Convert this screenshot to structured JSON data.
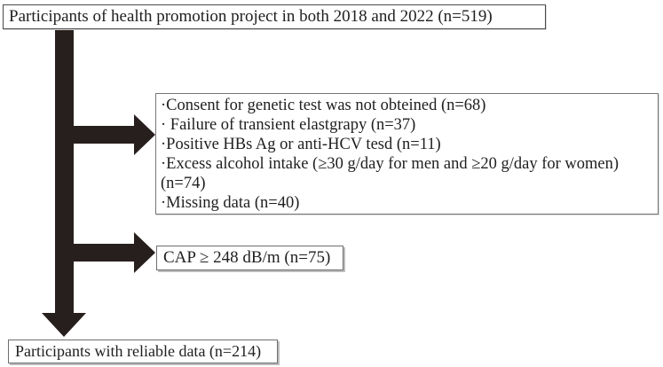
{
  "figure": {
    "type": "participant-flow-diagram",
    "colors": {
      "arrow": "#271f1d",
      "text": "#1f1f1f",
      "box_border": "#6e6e6e",
      "background": "#ffffff"
    },
    "boxes": {
      "source": {
        "label": "Participants of health promotion project in both 2018 and 2022 (n=519)"
      },
      "exclusions": {
        "lines": [
          "·Consent for genetic test was not obteined (n=68)",
          "· Failure of transient elastgrapy  (n=37)",
          "·Positive HBs Ag or anti-HCV tesd (n=11)",
          "·Excess alcohol intake (≥30 g/day for men and ≥20 g/day for women)",
          "(n=74)",
          "·Missing data (n=40)"
        ]
      },
      "cap_exclusion": {
        "label": "CAP ≥ 248 dB/m (n=75)"
      },
      "result": {
        "label": "Participants with reliable data (n=214)"
      }
    }
  }
}
